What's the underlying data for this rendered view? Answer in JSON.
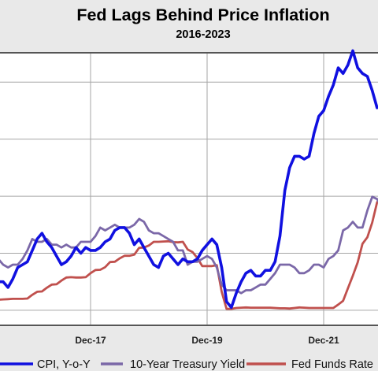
{
  "chart_data": {
    "type": "line",
    "title": "Fed Lags Behind Price Inflation",
    "subtitle": "2016-2023",
    "xlabel": "",
    "ylabel": "",
    "x_tick_labels": [
      "Dec-17",
      "Dec-19",
      "Dec-21"
    ],
    "x_range": [
      "2016-01",
      "2023-06"
    ],
    "ylim": [
      -0.5,
      9.0
    ],
    "grid": true,
    "legend_position": "bottom",
    "series": [
      {
        "name": "CPI, Y-o-Y",
        "color": "#1010e0",
        "values": [
          [
            "2016-01",
            1.4
          ],
          [
            "2016-02",
            1.0
          ],
          [
            "2016-03",
            0.9
          ],
          [
            "2016-04",
            1.1
          ],
          [
            "2016-05",
            1.0
          ],
          [
            "2016-06",
            1.0
          ],
          [
            "2016-07",
            0.8
          ],
          [
            "2016-08",
            1.1
          ],
          [
            "2016-09",
            1.5
          ],
          [
            "2016-10",
            1.6
          ],
          [
            "2016-11",
            1.7
          ],
          [
            "2016-12",
            2.1
          ],
          [
            "2017-01",
            2.5
          ],
          [
            "2017-02",
            2.7
          ],
          [
            "2017-03",
            2.4
          ],
          [
            "2017-04",
            2.2
          ],
          [
            "2017-05",
            1.9
          ],
          [
            "2017-06",
            1.6
          ],
          [
            "2017-07",
            1.7
          ],
          [
            "2017-08",
            1.9
          ],
          [
            "2017-09",
            2.2
          ],
          [
            "2017-10",
            2.0
          ],
          [
            "2017-11",
            2.2
          ],
          [
            "2017-12",
            2.1
          ],
          [
            "2018-01",
            2.1
          ],
          [
            "2018-02",
            2.2
          ],
          [
            "2018-03",
            2.4
          ],
          [
            "2018-04",
            2.5
          ],
          [
            "2018-05",
            2.8
          ],
          [
            "2018-06",
            2.9
          ],
          [
            "2018-07",
            2.9
          ],
          [
            "2018-08",
            2.7
          ],
          [
            "2018-09",
            2.3
          ],
          [
            "2018-10",
            2.5
          ],
          [
            "2018-11",
            2.2
          ],
          [
            "2018-12",
            1.9
          ],
          [
            "2019-01",
            1.6
          ],
          [
            "2019-02",
            1.5
          ],
          [
            "2019-03",
            1.9
          ],
          [
            "2019-04",
            2.0
          ],
          [
            "2019-05",
            1.8
          ],
          [
            "2019-06",
            1.6
          ],
          [
            "2019-07",
            1.8
          ],
          [
            "2019-08",
            1.7
          ],
          [
            "2019-09",
            1.7
          ],
          [
            "2019-10",
            1.8
          ],
          [
            "2019-11",
            2.1
          ],
          [
            "2019-12",
            2.3
          ],
          [
            "2020-01",
            2.5
          ],
          [
            "2020-02",
            2.3
          ],
          [
            "2020-03",
            1.5
          ],
          [
            "2020-04",
            0.3
          ],
          [
            "2020-05",
            0.1
          ],
          [
            "2020-06",
            0.6
          ],
          [
            "2020-07",
            1.0
          ],
          [
            "2020-08",
            1.3
          ],
          [
            "2020-09",
            1.4
          ],
          [
            "2020-10",
            1.2
          ],
          [
            "2020-11",
            1.2
          ],
          [
            "2020-12",
            1.4
          ],
          [
            "2021-01",
            1.4
          ],
          [
            "2021-02",
            1.7
          ],
          [
            "2021-03",
            2.6
          ],
          [
            "2021-04",
            4.2
          ],
          [
            "2021-05",
            5.0
          ],
          [
            "2021-06",
            5.4
          ],
          [
            "2021-07",
            5.4
          ],
          [
            "2021-08",
            5.3
          ],
          [
            "2021-09",
            5.4
          ],
          [
            "2021-10",
            6.2
          ],
          [
            "2021-11",
            6.8
          ],
          [
            "2021-12",
            7.0
          ],
          [
            "2022-01",
            7.5
          ],
          [
            "2022-02",
            7.9
          ],
          [
            "2022-03",
            8.5
          ],
          [
            "2022-04",
            8.3
          ],
          [
            "2022-05",
            8.6
          ],
          [
            "2022-06",
            9.1
          ],
          [
            "2022-07",
            8.5
          ],
          [
            "2022-08",
            8.3
          ],
          [
            "2022-09",
            8.2
          ],
          [
            "2022-10",
            7.7
          ],
          [
            "2022-11",
            7.1
          ]
        ]
      },
      {
        "name": "10-Year Treasury Yield",
        "color": "#7b68a8",
        "values": [
          [
            "2016-01",
            2.1
          ],
          [
            "2016-02",
            1.8
          ],
          [
            "2016-03",
            1.9
          ],
          [
            "2016-04",
            1.8
          ],
          [
            "2016-05",
            1.8
          ],
          [
            "2016-06",
            1.6
          ],
          [
            "2016-07",
            1.5
          ],
          [
            "2016-08",
            1.6
          ],
          [
            "2016-09",
            1.6
          ],
          [
            "2016-10",
            1.8
          ],
          [
            "2016-11",
            2.1
          ],
          [
            "2016-12",
            2.5
          ],
          [
            "2017-01",
            2.4
          ],
          [
            "2017-02",
            2.4
          ],
          [
            "2017-03",
            2.5
          ],
          [
            "2017-04",
            2.3
          ],
          [
            "2017-05",
            2.3
          ],
          [
            "2017-06",
            2.2
          ],
          [
            "2017-07",
            2.3
          ],
          [
            "2017-08",
            2.2
          ],
          [
            "2017-09",
            2.2
          ],
          [
            "2017-10",
            2.4
          ],
          [
            "2017-11",
            2.4
          ],
          [
            "2017-12",
            2.4
          ],
          [
            "2018-01",
            2.6
          ],
          [
            "2018-02",
            2.9
          ],
          [
            "2018-03",
            2.8
          ],
          [
            "2018-04",
            2.9
          ],
          [
            "2018-05",
            3.0
          ],
          [
            "2018-06",
            2.9
          ],
          [
            "2018-07",
            2.9
          ],
          [
            "2018-08",
            2.9
          ],
          [
            "2018-09",
            3.0
          ],
          [
            "2018-10",
            3.2
          ],
          [
            "2018-11",
            3.1
          ],
          [
            "2018-12",
            2.8
          ],
          [
            "2019-01",
            2.7
          ],
          [
            "2019-02",
            2.7
          ],
          [
            "2019-03",
            2.6
          ],
          [
            "2019-04",
            2.5
          ],
          [
            "2019-05",
            2.4
          ],
          [
            "2019-06",
            2.1
          ],
          [
            "2019-07",
            2.1
          ],
          [
            "2019-08",
            1.6
          ],
          [
            "2019-09",
            1.7
          ],
          [
            "2019-10",
            1.7
          ],
          [
            "2019-11",
            1.8
          ],
          [
            "2019-12",
            1.9
          ],
          [
            "2020-01",
            1.8
          ],
          [
            "2020-02",
            1.5
          ],
          [
            "2020-03",
            0.9
          ],
          [
            "2020-04",
            0.7
          ],
          [
            "2020-05",
            0.7
          ],
          [
            "2020-06",
            0.7
          ],
          [
            "2020-07",
            0.6
          ],
          [
            "2020-08",
            0.7
          ],
          [
            "2020-09",
            0.7
          ],
          [
            "2020-10",
            0.8
          ],
          [
            "2020-11",
            0.9
          ],
          [
            "2020-12",
            0.9
          ],
          [
            "2021-01",
            1.1
          ],
          [
            "2021-02",
            1.3
          ],
          [
            "2021-03",
            1.6
          ],
          [
            "2021-04",
            1.6
          ],
          [
            "2021-05",
            1.6
          ],
          [
            "2021-06",
            1.5
          ],
          [
            "2021-07",
            1.3
          ],
          [
            "2021-08",
            1.3
          ],
          [
            "2021-09",
            1.4
          ],
          [
            "2021-10",
            1.6
          ],
          [
            "2021-11",
            1.6
          ],
          [
            "2021-12",
            1.5
          ],
          [
            "2022-01",
            1.8
          ],
          [
            "2022-02",
            1.9
          ],
          [
            "2022-03",
            2.1
          ],
          [
            "2022-04",
            2.8
          ],
          [
            "2022-05",
            2.9
          ],
          [
            "2022-06",
            3.1
          ],
          [
            "2022-07",
            2.9
          ],
          [
            "2022-08",
            2.9
          ],
          [
            "2022-09",
            3.5
          ],
          [
            "2022-10",
            3.98
          ],
          [
            "2022-11",
            3.9
          ],
          [
            "2022-12",
            3.6
          ]
        ]
      },
      {
        "name": "Fed Funds Rate",
        "color": "#c0504d",
        "values": [
          [
            "2016-01",
            0.38
          ],
          [
            "2016-02",
            0.38
          ],
          [
            "2016-03",
            0.36
          ],
          [
            "2016-04",
            0.37
          ],
          [
            "2016-05",
            0.37
          ],
          [
            "2016-06",
            0.38
          ],
          [
            "2016-07",
            0.39
          ],
          [
            "2016-08",
            0.4
          ],
          [
            "2016-09",
            0.4
          ],
          [
            "2016-10",
            0.4
          ],
          [
            "2016-11",
            0.41
          ],
          [
            "2016-12",
            0.54
          ],
          [
            "2017-01",
            0.65
          ],
          [
            "2017-02",
            0.66
          ],
          [
            "2017-03",
            0.79
          ],
          [
            "2017-04",
            0.9
          ],
          [
            "2017-05",
            0.91
          ],
          [
            "2017-06",
            1.04
          ],
          [
            "2017-07",
            1.15
          ],
          [
            "2017-08",
            1.16
          ],
          [
            "2017-09",
            1.15
          ],
          [
            "2017-10",
            1.15
          ],
          [
            "2017-11",
            1.16
          ],
          [
            "2017-12",
            1.3
          ],
          [
            "2018-01",
            1.41
          ],
          [
            "2018-02",
            1.42
          ],
          [
            "2018-03",
            1.51
          ],
          [
            "2018-04",
            1.69
          ],
          [
            "2018-05",
            1.7
          ],
          [
            "2018-06",
            1.82
          ],
          [
            "2018-07",
            1.91
          ],
          [
            "2018-08",
            1.91
          ],
          [
            "2018-09",
            1.95
          ],
          [
            "2018-10",
            2.19
          ],
          [
            "2018-11",
            2.2
          ],
          [
            "2018-12",
            2.27
          ],
          [
            "2019-01",
            2.4
          ],
          [
            "2019-02",
            2.4
          ],
          [
            "2019-03",
            2.41
          ],
          [
            "2019-04",
            2.42
          ],
          [
            "2019-05",
            2.39
          ],
          [
            "2019-06",
            2.38
          ],
          [
            "2019-07",
            2.4
          ],
          [
            "2019-08",
            2.13
          ],
          [
            "2019-09",
            2.04
          ],
          [
            "2019-10",
            1.83
          ],
          [
            "2019-11",
            1.55
          ],
          [
            "2019-12",
            1.55
          ],
          [
            "2020-01",
            1.55
          ],
          [
            "2020-02",
            1.58
          ],
          [
            "2020-03",
            0.65
          ],
          [
            "2020-04",
            0.05
          ],
          [
            "2020-05",
            0.05
          ],
          [
            "2020-06",
            0.08
          ],
          [
            "2020-07",
            0.09
          ],
          [
            "2020-08",
            0.1
          ],
          [
            "2020-09",
            0.09
          ],
          [
            "2020-10",
            0.09
          ],
          [
            "2020-11",
            0.09
          ],
          [
            "2020-12",
            0.09
          ],
          [
            "2021-01",
            0.09
          ],
          [
            "2021-02",
            0.08
          ],
          [
            "2021-03",
            0.07
          ],
          [
            "2021-04",
            0.07
          ],
          [
            "2021-05",
            0.06
          ],
          [
            "2021-06",
            0.08
          ],
          [
            "2021-07",
            0.1
          ],
          [
            "2021-08",
            0.09
          ],
          [
            "2021-09",
            0.08
          ],
          [
            "2021-10",
            0.08
          ],
          [
            "2021-11",
            0.08
          ],
          [
            "2021-12",
            0.08
          ],
          [
            "2022-01",
            0.08
          ],
          [
            "2022-02",
            0.08
          ],
          [
            "2022-03",
            0.2
          ],
          [
            "2022-04",
            0.33
          ],
          [
            "2022-05",
            0.77
          ],
          [
            "2022-06",
            1.21
          ],
          [
            "2022-07",
            1.68
          ],
          [
            "2022-08",
            2.33
          ],
          [
            "2022-09",
            2.56
          ],
          [
            "2022-10",
            3.08
          ],
          [
            "2022-11",
            3.78
          ],
          [
            "2022-12",
            4.1
          ]
        ]
      }
    ]
  }
}
